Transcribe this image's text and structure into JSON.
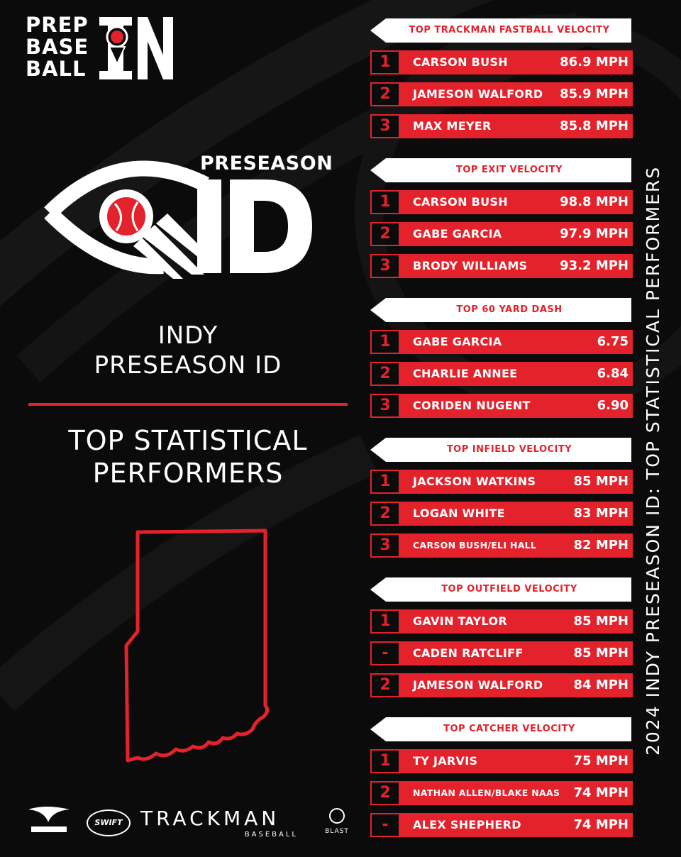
{
  "brand": {
    "logo_lines": [
      "PREP",
      "BASE",
      "BALL"
    ],
    "logo_state": "IN",
    "accent": "#e3222c"
  },
  "event": {
    "badge_label": "PRESEASON",
    "badge_big": "ID",
    "title_line1": "INDY",
    "title_line2": "PRESEASON ID",
    "subtitle_line1": "TOP STATISTICAL",
    "subtitle_line2": "PERFORMERS"
  },
  "vertical_caption": "2024 INDY PRESEASON ID: TOP STATISTICAL PERFORMERS",
  "sections": [
    {
      "title": "TOP TRACKMAN FASTBALL VELOCITY",
      "rows": [
        {
          "rank": "1",
          "name": "CARSON BUSH",
          "value": "86.9 MPH"
        },
        {
          "rank": "2",
          "name": "JAMESON WALFORD",
          "value": "85.9 MPH"
        },
        {
          "rank": "3",
          "name": "MAX MEYER",
          "value": "85.8 MPH"
        }
      ]
    },
    {
      "title": "TOP EXIT VELOCITY",
      "rows": [
        {
          "rank": "1",
          "name": "CARSON BUSH",
          "value": "98.8 MPH"
        },
        {
          "rank": "2",
          "name": "GABE GARCIA",
          "value": "97.9 MPH"
        },
        {
          "rank": "3",
          "name": "BRODY WILLIAMS",
          "value": "93.2 MPH"
        }
      ]
    },
    {
      "title": "TOP 60 YARD DASH",
      "rows": [
        {
          "rank": "1",
          "name": "GABE GARCIA",
          "value": "6.75"
        },
        {
          "rank": "2",
          "name": "CHARLIE ANNEE",
          "value": "6.84"
        },
        {
          "rank": "3",
          "name": "CORIDEN NUGENT",
          "value": "6.90"
        }
      ]
    },
    {
      "title": "TOP INFIELD VELOCITY",
      "rows": [
        {
          "rank": "1",
          "name": "JACKSON WATKINS",
          "value": "85 MPH"
        },
        {
          "rank": "2",
          "name": "LOGAN WHITE",
          "value": "83 MPH"
        },
        {
          "rank": "3",
          "name": "CARSON BUSH/ELI HALL",
          "value": "82 MPH"
        }
      ]
    },
    {
      "title": "TOP OUTFIELD VELOCITY",
      "rows": [
        {
          "rank": "1",
          "name": "GAVIN TAYLOR",
          "value": "85 MPH"
        },
        {
          "rank": "-",
          "name": "CADEN RATCLIFF",
          "value": "85 MPH"
        },
        {
          "rank": "2",
          "name": "JAMESON WALFORD",
          "value": "84 MPH"
        }
      ]
    },
    {
      "title": "TOP CATCHER VELOCITY",
      "rows": [
        {
          "rank": "1",
          "name": "TY JARVIS",
          "value": "75 MPH"
        },
        {
          "rank": "2",
          "name": "NATHAN ALLEN/BLAKE NAAS",
          "value": "74 MPH"
        },
        {
          "rank": "-",
          "name": "ALEX SHEPHERD",
          "value": "74 MPH"
        }
      ]
    }
  ],
  "sponsors": {
    "swift": "SWIFT",
    "trackman": "TRACKMAN",
    "trackman_sub": "BASEBALL",
    "blast": "BLAST"
  }
}
